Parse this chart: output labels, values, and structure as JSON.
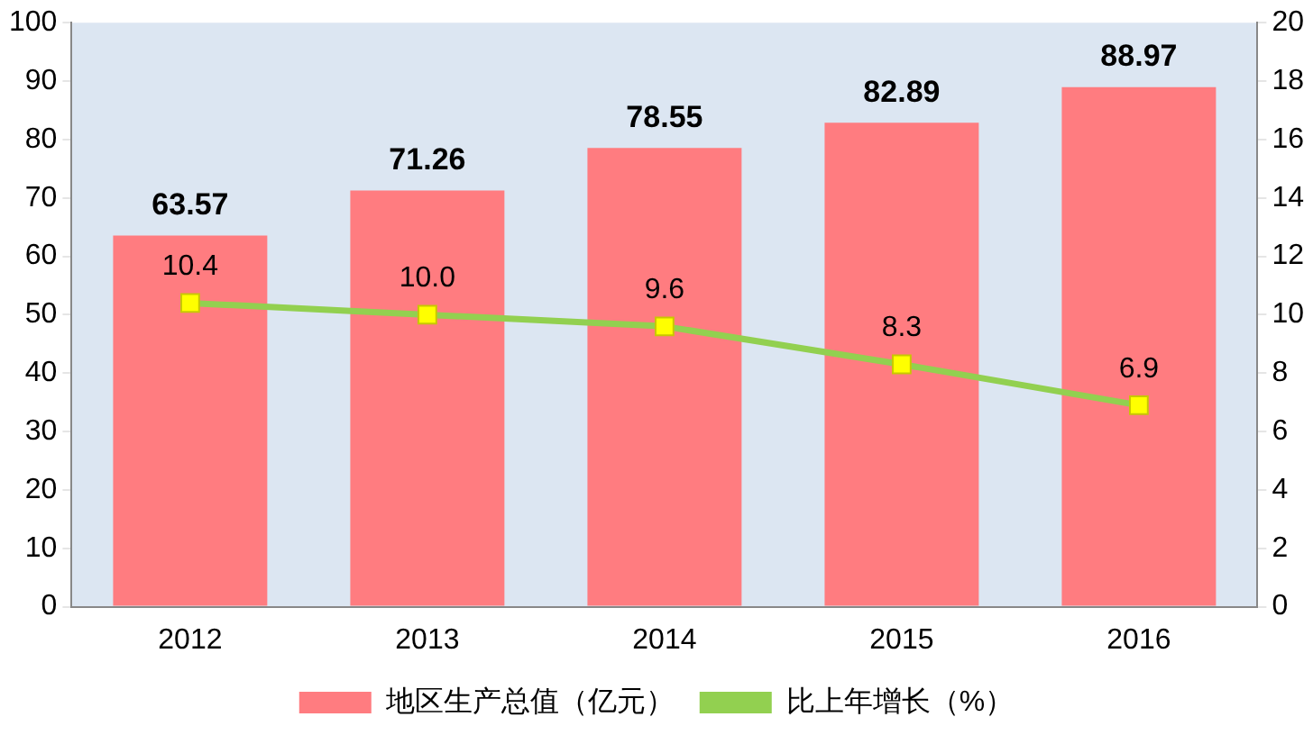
{
  "chart_data": {
    "type": "bar",
    "categories": [
      "2012",
      "2013",
      "2014",
      "2015",
      "2016"
    ],
    "series": [
      {
        "name": "地区生产总值（亿元）",
        "color": "#ff7c80",
        "values": [
          63.57,
          71.26,
          78.55,
          82.89,
          88.97
        ],
        "value_labels": [
          "63.57",
          "71.26",
          "78.55",
          "82.89",
          "88.97"
        ]
      },
      {
        "name": "比上年增长（%）",
        "type": "line",
        "axis": "y2",
        "color": "#92d050",
        "values": [
          10.4,
          10.0,
          9.6,
          8.3,
          6.9
        ],
        "value_labels": [
          "10.4",
          "10.0",
          "9.6",
          "8.3",
          "6.9"
        ]
      }
    ],
    "ylim": [
      0,
      100
    ],
    "yticks": [
      0,
      10,
      20,
      30,
      40,
      50,
      60,
      70,
      80,
      90,
      100
    ],
    "y2lim": [
      0,
      20
    ],
    "y2ticks": [
      0,
      2,
      4,
      6,
      8,
      10,
      12,
      14,
      16,
      18,
      20
    ],
    "grid": false,
    "legend": "bottom",
    "marker": "square",
    "line_style": "solid"
  }
}
